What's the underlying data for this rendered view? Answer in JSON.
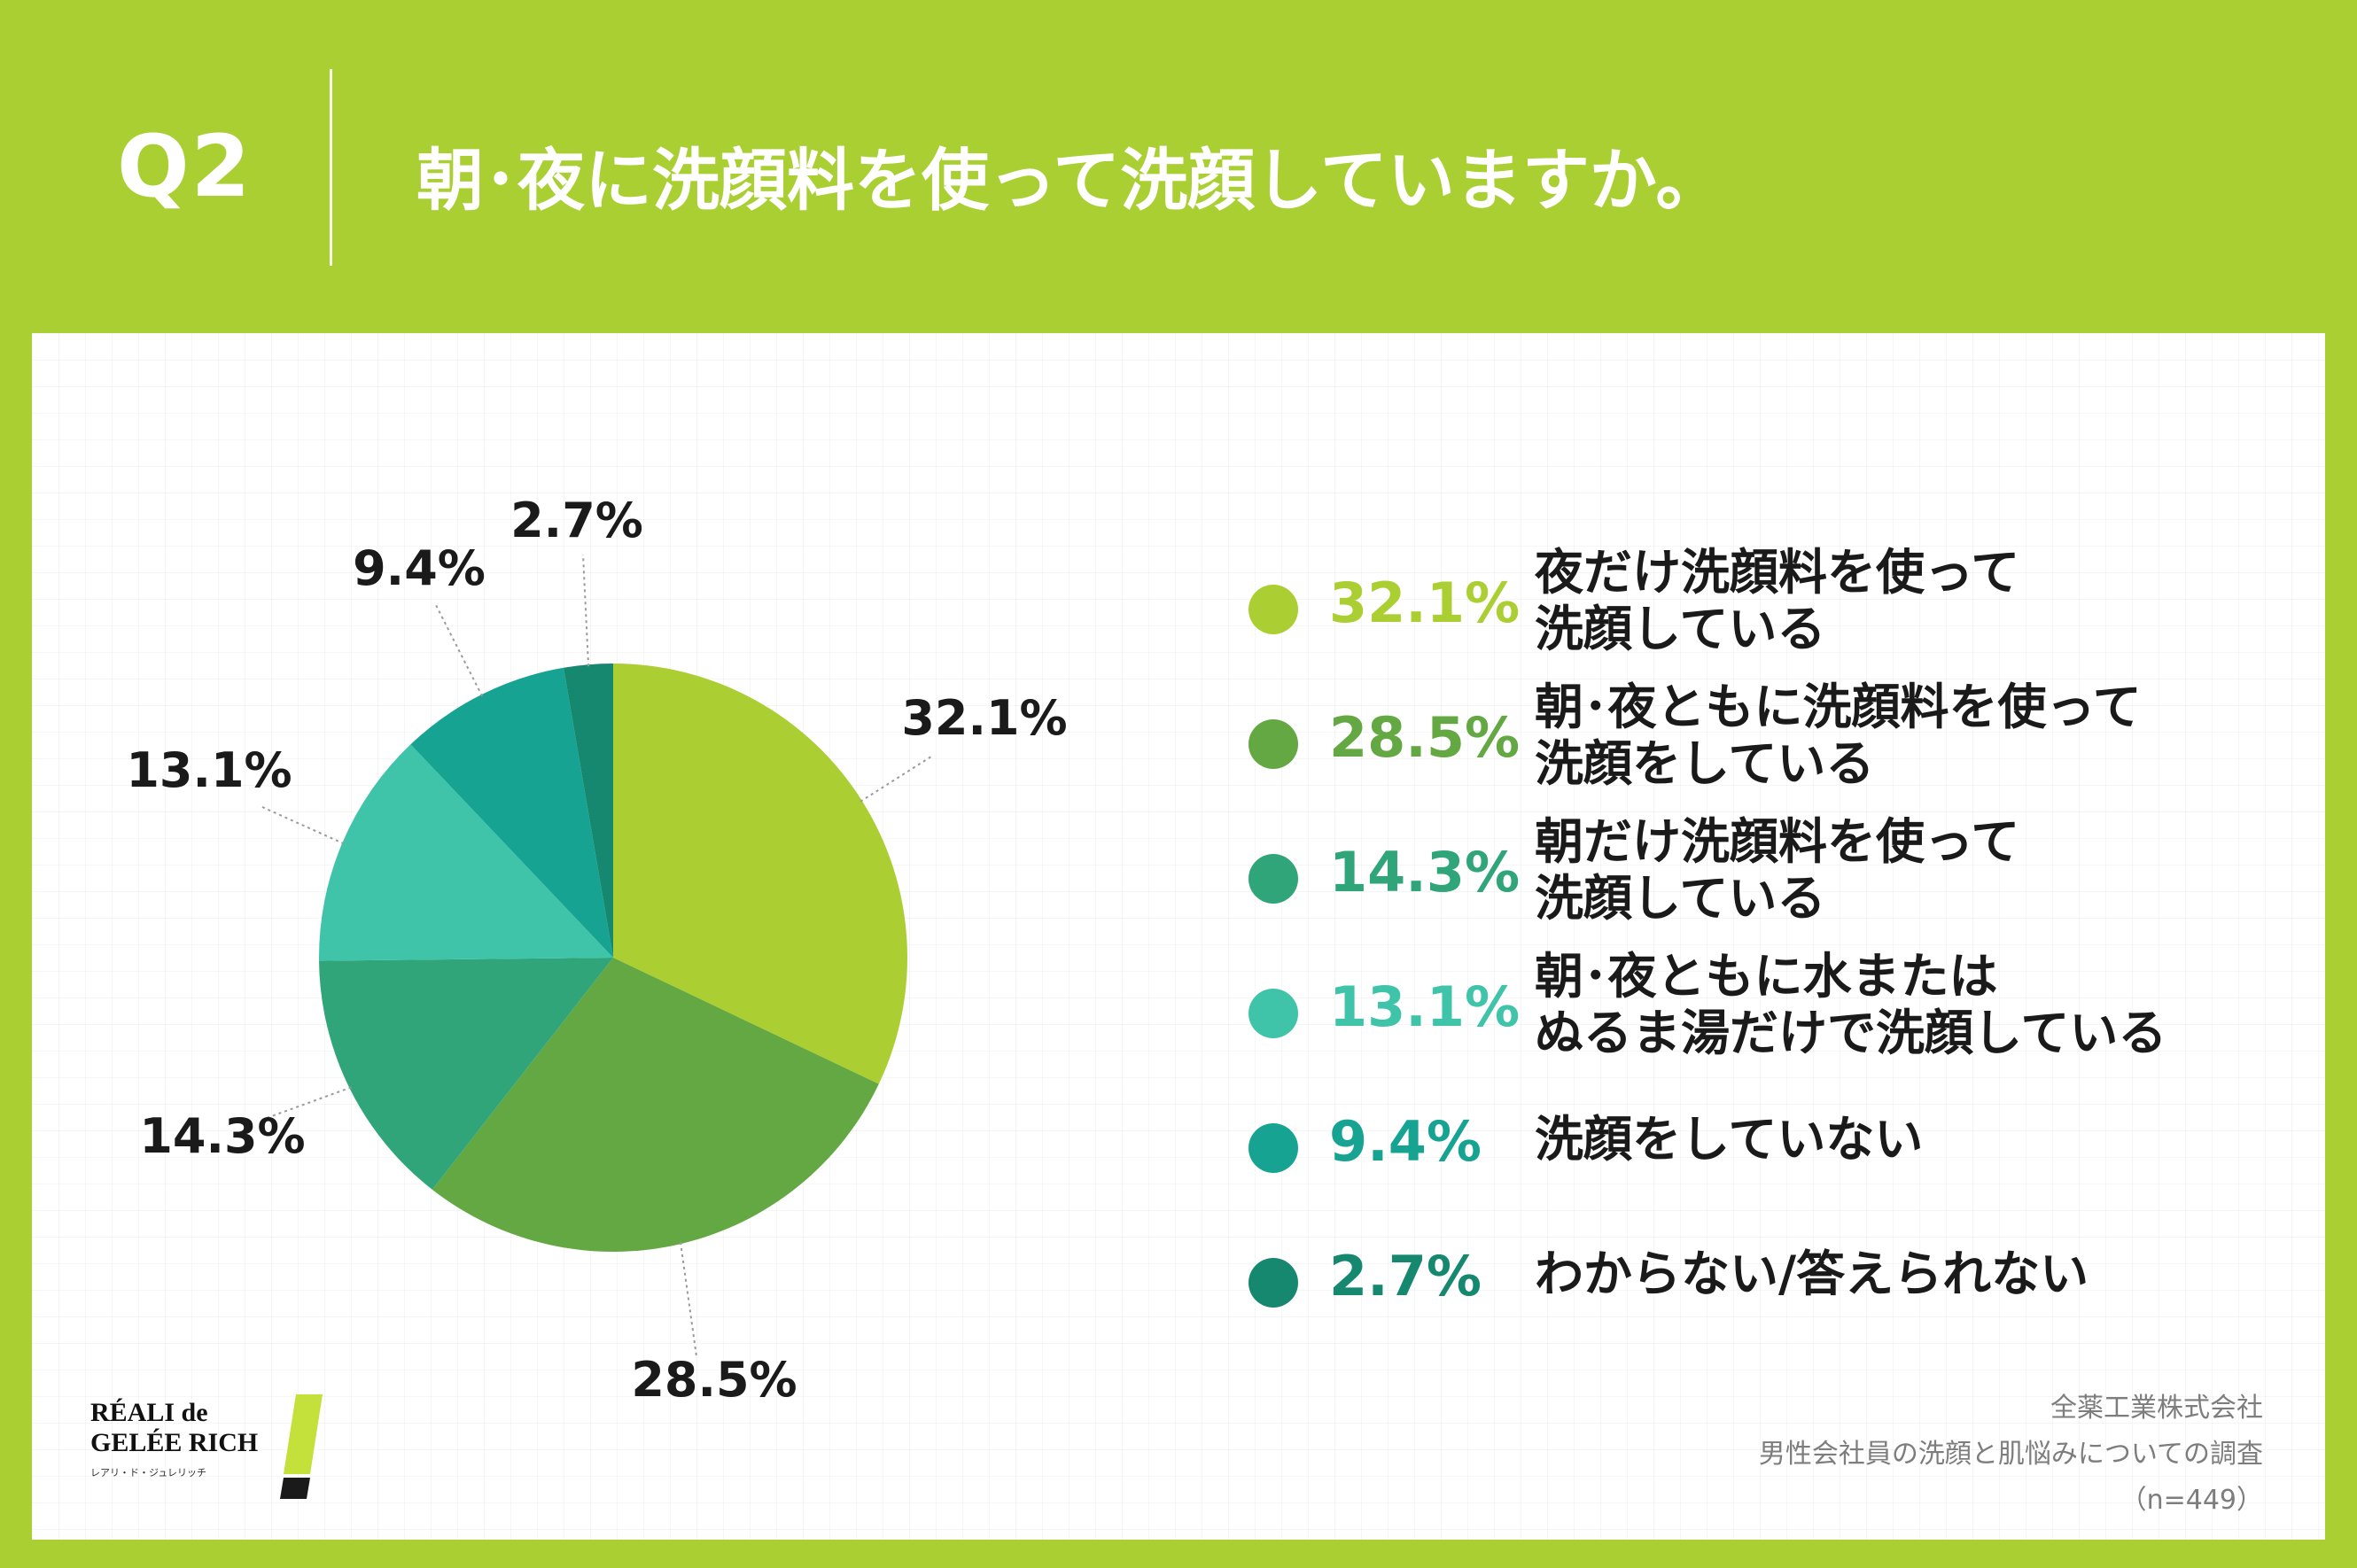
{
  "header": {
    "question_label": "Q2",
    "title": "朝･夜に洗顔料を使って洗顔していますか。"
  },
  "chart_data": {
    "type": "pie",
    "title": "朝･夜に洗顔料を使って洗顔していますか。",
    "categories": [
      "夜だけ洗顔料を使って洗顔している",
      "朝･夜ともに洗顔料を使って洗顔をしている",
      "朝だけ洗顔料を使って洗顔している",
      "朝･夜ともに水またはぬるま湯だけで洗顔している",
      "洗顔をしていない",
      "わからない/答えられない"
    ],
    "values": [
      32.1,
      28.5,
      14.3,
      13.1,
      9.4,
      2.7
    ],
    "labels": [
      "32.1%",
      "28.5%",
      "14.3%",
      "13.1%",
      "9.4%",
      "2.7%"
    ],
    "colors": [
      "#abcf32",
      "#63a842",
      "#30a57a",
      "#3fc4aa",
      "#17a392",
      "#178870"
    ],
    "start_angle": "12 o'clock",
    "direction": "clockwise",
    "legend_position": "right"
  },
  "legend": {
    "items": [
      {
        "pct": "32.1%",
        "lines": [
          "夜だけ洗顔料を使って",
          "洗顔している"
        ],
        "color": "#abcf32"
      },
      {
        "pct": "28.5%",
        "lines": [
          "朝･夜ともに洗顔料を使って",
          "洗顔をしている"
        ],
        "color": "#63a842"
      },
      {
        "pct": "14.3%",
        "lines": [
          "朝だけ洗顔料を使って",
          "洗顔している"
        ],
        "color": "#30a57a"
      },
      {
        "pct": "13.1%",
        "lines": [
          "朝･夜ともに水または",
          "ぬるま湯だけで洗顔している"
        ],
        "color": "#3fc4aa"
      },
      {
        "pct": "9.4%",
        "lines": [
          "洗顔をしていない"
        ],
        "color": "#17a392"
      },
      {
        "pct": "2.7%",
        "lines": [
          "わからない/答えられない"
        ],
        "color": "#178870"
      }
    ]
  },
  "source": {
    "company": "全薬工業株式会社",
    "survey": "男性会社員の洗顔と肌悩みについての調査",
    "sample": "（n=449）"
  },
  "logo": {
    "line1": "RÉALI de",
    "line2": "GELÉE RICH",
    "sub": "レアリ・ド・ジュレリッチ"
  }
}
